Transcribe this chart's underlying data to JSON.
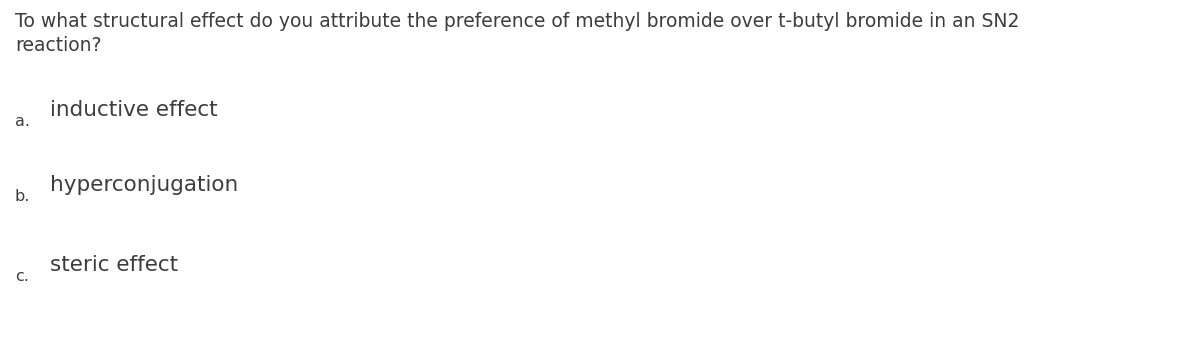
{
  "background_color": "#ffffff",
  "question_text_line1": "To what structural effect do you attribute the preference of methyl bromide over t-butyl bromide in an SN2",
  "question_text_line2": "reaction?",
  "options": [
    {
      "label": "a.",
      "text": "inductive effect"
    },
    {
      "label": "b.",
      "text": "hyperconjugation"
    },
    {
      "label": "c.",
      "text": "steric effect"
    }
  ],
  "question_font_size": 13.5,
  "option_label_font_size": 11.5,
  "option_text_font_size": 15.5,
  "text_color": "#3d3d3d",
  "fig_width": 12.0,
  "fig_height": 3.42,
  "dpi": 100
}
